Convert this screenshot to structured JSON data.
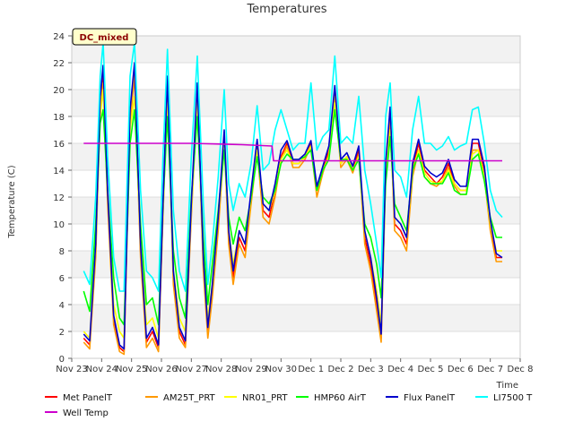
{
  "chart_data": {
    "type": "line",
    "title": "Temperatures",
    "xlabel": "Time",
    "ylabel": "Temperature (C)",
    "badge": "DC_mixed",
    "ylim": [
      0,
      24
    ],
    "xlim": [
      0,
      15
    ],
    "yticks": [
      0,
      2,
      4,
      6,
      8,
      10,
      12,
      14,
      16,
      18,
      20,
      22,
      24
    ],
    "x_tick_labels": [
      "Nov 23",
      "Nov 24",
      "Nov 25",
      "Nov 26",
      "Nov 27",
      "Nov 28",
      "Nov 29",
      "Nov 30",
      "Dec 1",
      "Dec 2",
      "Dec 3",
      "Dec 4",
      "Dec 5",
      "Dec 6",
      "Dec 7",
      "Dec 8"
    ],
    "grid_bands": true,
    "legend_position": "bottom",
    "series": [
      {
        "name": "Met PanelT",
        "color": "#ff0000",
        "x": [
          0.4,
          0.6,
          0.8,
          0.95,
          1.05,
          1.2,
          1.4,
          1.6,
          1.75,
          1.95,
          2.1,
          2.3,
          2.5,
          2.7,
          2.9,
          3.05,
          3.2,
          3.4,
          3.6,
          3.8,
          4.0,
          4.2,
          4.4,
          4.55,
          4.7,
          4.9,
          5.1,
          5.25,
          5.4,
          5.6,
          5.8,
          6.0,
          6.2,
          6.4,
          6.6,
          6.8,
          7.0,
          7.2,
          7.4,
          7.6,
          7.8,
          8.0,
          8.2,
          8.4,
          8.6,
          8.8,
          9.0,
          9.2,
          9.4,
          9.6,
          9.8,
          10.0,
          10.2,
          10.35,
          10.5,
          10.65,
          10.8,
          11.0,
          11.2,
          11.4,
          11.6,
          11.8,
          12.0,
          12.2,
          12.4,
          12.6,
          12.8,
          13.0,
          13.2,
          13.4,
          13.6,
          13.8,
          14.0,
          14.2,
          14.4
        ],
        "values": [
          1.5,
          1.0,
          8.0,
          19.0,
          21.0,
          12.0,
          3.0,
          0.8,
          0.5,
          18.0,
          21.5,
          8.0,
          1.2,
          2.0,
          0.8,
          11.0,
          20.5,
          6.0,
          2.0,
          1.0,
          11.0,
          20.0,
          7.0,
          2.0,
          5.0,
          10.0,
          16.5,
          9.0,
          6.0,
          9.0,
          8.0,
          12.0,
          16.0,
          11.0,
          10.5,
          12.5,
          15.0,
          16.0,
          14.5,
          14.5,
          15.0,
          16.0,
          12.5,
          14.0,
          15.5,
          20.0,
          14.5,
          15.0,
          14.0,
          15.5,
          9.0,
          7.0,
          4.0,
          1.5,
          14.0,
          18.5,
          10.0,
          9.5,
          8.5,
          14.0,
          16.0,
          14.0,
          13.5,
          13.0,
          13.5,
          14.5,
          13.0,
          12.5,
          12.5,
          16.0,
          16.0,
          14.0,
          10.0,
          7.5,
          7.5
        ]
      },
      {
        "name": "AM25T_PRT",
        "color": "#ff9900",
        "x": [
          0.4,
          0.6,
          0.8,
          0.95,
          1.05,
          1.2,
          1.4,
          1.6,
          1.75,
          1.95,
          2.1,
          2.3,
          2.5,
          2.7,
          2.9,
          3.05,
          3.2,
          3.4,
          3.6,
          3.8,
          4.0,
          4.2,
          4.4,
          4.55,
          4.7,
          4.9,
          5.1,
          5.25,
          5.4,
          5.6,
          5.8,
          6.0,
          6.2,
          6.4,
          6.6,
          6.8,
          7.0,
          7.2,
          7.4,
          7.6,
          7.8,
          8.0,
          8.2,
          8.4,
          8.6,
          8.8,
          9.0,
          9.2,
          9.4,
          9.6,
          9.8,
          10.0,
          10.2,
          10.35,
          10.5,
          10.65,
          10.8,
          11.0,
          11.2,
          11.4,
          11.6,
          11.8,
          12.0,
          12.2,
          12.4,
          12.6,
          12.8,
          13.0,
          13.2,
          13.4,
          13.6,
          13.8,
          14.0,
          14.2,
          14.4
        ],
        "values": [
          1.2,
          0.7,
          7.5,
          18.5,
          20.5,
          11.5,
          2.5,
          0.5,
          0.3,
          17.5,
          21.0,
          7.5,
          0.8,
          1.5,
          0.5,
          10.5,
          20.0,
          5.5,
          1.5,
          0.8,
          10.5,
          19.5,
          6.5,
          1.5,
          4.5,
          9.5,
          16.0,
          8.5,
          5.5,
          8.5,
          7.5,
          11.5,
          15.5,
          10.5,
          10.0,
          12.0,
          14.8,
          15.8,
          14.2,
          14.2,
          14.8,
          15.8,
          12.0,
          13.8,
          15.2,
          19.5,
          14.2,
          14.8,
          13.8,
          15.2,
          8.5,
          6.5,
          3.5,
          1.2,
          13.5,
          18.0,
          9.5,
          9.0,
          8.0,
          13.5,
          15.5,
          13.5,
          13.0,
          12.8,
          13.2,
          14.2,
          12.8,
          12.2,
          12.2,
          15.5,
          15.5,
          13.5,
          9.5,
          7.2,
          7.2
        ]
      },
      {
        "name": "NR01_PRT",
        "color": "#ffff00",
        "x": [
          0.4,
          0.6,
          0.8,
          0.95,
          1.05,
          1.2,
          1.4,
          1.6,
          1.75,
          1.95,
          2.1,
          2.3,
          2.5,
          2.7,
          2.9,
          3.05,
          3.2,
          3.4,
          3.6,
          3.8,
          4.0,
          4.2,
          4.4,
          4.55,
          4.7,
          4.9,
          5.1,
          5.25,
          5.4,
          5.6,
          5.8,
          6.0,
          6.2,
          6.4,
          6.6,
          6.8,
          7.0,
          7.2,
          7.4,
          7.6,
          7.8,
          8.0,
          8.2,
          8.4,
          8.6,
          8.8,
          9.0,
          9.2,
          9.4,
          9.6,
          9.8,
          10.0,
          10.2,
          10.35,
          10.5,
          10.65,
          10.8,
          11.0,
          11.2,
          11.4,
          11.6,
          11.8,
          12.0,
          12.2,
          12.4,
          12.6,
          12.8,
          13.0,
          13.2,
          13.4,
          13.6,
          13.8,
          14.0,
          14.2,
          14.4
        ],
        "values": [
          2.0,
          1.5,
          8.5,
          18.0,
          20.0,
          12.5,
          4.0,
          2.0,
          1.5,
          17.0,
          19.5,
          8.5,
          2.5,
          3.0,
          1.5,
          11.0,
          19.0,
          6.5,
          3.0,
          2.0,
          11.0,
          19.0,
          7.5,
          3.0,
          5.5,
          10.5,
          16.0,
          9.5,
          7.0,
          9.5,
          8.5,
          12.0,
          15.5,
          11.5,
          11.0,
          12.5,
          14.8,
          15.5,
          14.5,
          14.5,
          15.0,
          15.8,
          12.5,
          14.0,
          15.0,
          19.0,
          14.5,
          15.0,
          14.0,
          15.0,
          9.5,
          7.5,
          5.0,
          2.5,
          13.5,
          17.0,
          10.5,
          10.0,
          9.0,
          14.0,
          15.5,
          13.8,
          13.2,
          13.0,
          13.2,
          14.0,
          13.0,
          12.5,
          12.5,
          15.2,
          15.5,
          13.5,
          10.0,
          8.0,
          8.0
        ]
      },
      {
        "name": "HMP60 AirT",
        "color": "#00ff00",
        "x": [
          0.4,
          0.6,
          0.8,
          0.95,
          1.05,
          1.2,
          1.4,
          1.6,
          1.75,
          1.95,
          2.1,
          2.3,
          2.5,
          2.7,
          2.9,
          3.05,
          3.2,
          3.4,
          3.6,
          3.8,
          4.0,
          4.2,
          4.4,
          4.55,
          4.7,
          4.9,
          5.1,
          5.25,
          5.4,
          5.6,
          5.8,
          6.0,
          6.2,
          6.4,
          6.6,
          6.8,
          7.0,
          7.2,
          7.4,
          7.6,
          7.8,
          8.0,
          8.2,
          8.4,
          8.6,
          8.8,
          9.0,
          9.2,
          9.4,
          9.6,
          9.8,
          10.0,
          10.2,
          10.35,
          10.5,
          10.65,
          10.8,
          11.0,
          11.2,
          11.4,
          11.6,
          11.8,
          12.0,
          12.2,
          12.4,
          12.6,
          12.8,
          13.0,
          13.2,
          13.4,
          13.6,
          13.8,
          14.0,
          14.2,
          14.4
        ],
        "values": [
          5.0,
          3.5,
          10.0,
          17.5,
          18.5,
          12.5,
          6.0,
          3.0,
          2.5,
          16.0,
          18.5,
          10.0,
          4.0,
          4.5,
          2.5,
          11.5,
          18.0,
          8.0,
          4.5,
          3.0,
          12.0,
          18.0,
          9.0,
          4.0,
          7.0,
          11.0,
          15.5,
          10.5,
          8.5,
          10.5,
          9.5,
          12.0,
          15.0,
          12.0,
          11.5,
          12.5,
          14.5,
          15.2,
          14.8,
          14.8,
          15.0,
          15.5,
          12.5,
          14.0,
          14.8,
          18.5,
          14.8,
          14.8,
          14.0,
          14.8,
          10.0,
          9.0,
          7.0,
          4.5,
          13.0,
          16.5,
          11.5,
          10.5,
          9.5,
          14.0,
          15.2,
          13.5,
          13.0,
          13.0,
          13.0,
          13.8,
          12.5,
          12.2,
          12.2,
          14.8,
          15.2,
          13.2,
          10.5,
          9.0,
          9.0
        ]
      },
      {
        "name": "Flux PanelT",
        "color": "#0000cc",
        "x": [
          0.4,
          0.6,
          0.8,
          0.95,
          1.05,
          1.2,
          1.4,
          1.6,
          1.75,
          1.95,
          2.1,
          2.3,
          2.5,
          2.7,
          2.9,
          3.05,
          3.2,
          3.4,
          3.6,
          3.8,
          4.0,
          4.2,
          4.4,
          4.55,
          4.7,
          4.9,
          5.1,
          5.25,
          5.4,
          5.6,
          5.8,
          6.0,
          6.2,
          6.4,
          6.6,
          6.8,
          7.0,
          7.2,
          7.4,
          7.6,
          7.8,
          8.0,
          8.2,
          8.4,
          8.6,
          8.8,
          9.0,
          9.2,
          9.4,
          9.6,
          9.8,
          10.0,
          10.2,
          10.35,
          10.5,
          10.65,
          10.8,
          11.0,
          11.2,
          11.4,
          11.6,
          11.8,
          12.0,
          12.2,
          12.4,
          12.6,
          12.8,
          13.0,
          13.2,
          13.4,
          13.6,
          13.8,
          14.0,
          14.2,
          14.4
        ],
        "values": [
          1.8,
          1.3,
          8.5,
          19.5,
          21.8,
          12.5,
          3.2,
          1.0,
          0.7,
          18.5,
          22.0,
          8.5,
          1.5,
          2.3,
          1.0,
          11.5,
          21.0,
          6.5,
          2.3,
          1.3,
          11.5,
          20.5,
          7.5,
          2.3,
          5.5,
          10.5,
          17.0,
          9.5,
          6.5,
          9.5,
          8.5,
          12.5,
          16.3,
          11.5,
          11.0,
          13.0,
          15.5,
          16.2,
          14.8,
          14.8,
          15.2,
          16.2,
          12.8,
          14.3,
          15.8,
          20.3,
          14.8,
          15.3,
          14.3,
          15.8,
          9.5,
          7.5,
          4.5,
          1.8,
          14.5,
          18.7,
          10.5,
          10.0,
          9.0,
          14.5,
          16.3,
          14.3,
          13.8,
          13.5,
          13.8,
          14.8,
          13.3,
          12.8,
          12.8,
          16.3,
          16.3,
          14.3,
          10.3,
          7.8,
          7.5
        ]
      },
      {
        "name": "LI7500 T",
        "color": "#00ffff",
        "x": [
          0.4,
          0.6,
          0.8,
          0.95,
          1.05,
          1.2,
          1.4,
          1.6,
          1.75,
          1.95,
          2.1,
          2.3,
          2.5,
          2.7,
          2.9,
          3.05,
          3.2,
          3.4,
          3.6,
          3.8,
          4.0,
          4.2,
          4.4,
          4.55,
          4.7,
          4.9,
          5.1,
          5.25,
          5.4,
          5.6,
          5.8,
          6.0,
          6.2,
          6.4,
          6.6,
          6.8,
          7.0,
          7.2,
          7.4,
          7.6,
          7.8,
          8.0,
          8.2,
          8.4,
          8.6,
          8.8,
          9.0,
          9.2,
          9.4,
          9.6,
          9.8,
          10.0,
          10.2,
          10.35,
          10.5,
          10.65,
          10.8,
          11.0,
          11.2,
          11.4,
          11.6,
          11.8,
          12.0,
          12.2,
          12.4,
          12.6,
          12.8,
          13.0,
          13.2,
          13.4,
          13.6,
          13.8,
          14.0,
          14.2,
          14.4
        ],
        "values": [
          6.5,
          5.5,
          12.0,
          21.0,
          23.5,
          15.0,
          7.5,
          5.0,
          5.0,
          21.0,
          23.5,
          12.5,
          6.5,
          6.0,
          5.0,
          15.0,
          23.0,
          11.0,
          6.5,
          5.0,
          15.0,
          22.5,
          11.5,
          5.5,
          8.5,
          13.5,
          20.0,
          13.0,
          11.0,
          13.0,
          12.0,
          14.5,
          18.8,
          14.0,
          14.5,
          17.0,
          18.5,
          17.0,
          15.5,
          16.0,
          16.0,
          20.5,
          15.5,
          16.5,
          17.0,
          22.5,
          16.0,
          16.5,
          16.0,
          19.5,
          14.0,
          11.5,
          8.5,
          6.0,
          18.0,
          20.5,
          14.0,
          13.5,
          12.0,
          17.0,
          19.5,
          16.0,
          16.0,
          15.5,
          15.8,
          16.5,
          15.5,
          15.8,
          16.0,
          18.5,
          18.7,
          16.0,
          12.5,
          11.0,
          10.5
        ]
      },
      {
        "name": "Well Temp",
        "color": "#cc00cc",
        "x": [
          0.4,
          2.0,
          4.0,
          5.7,
          6.7,
          6.75,
          8.0,
          10.0,
          12.0,
          14.0,
          14.4
        ],
        "values": [
          16.0,
          16.0,
          16.0,
          15.9,
          15.8,
          14.7,
          14.7,
          14.7,
          14.7,
          14.7,
          14.7
        ]
      }
    ]
  }
}
